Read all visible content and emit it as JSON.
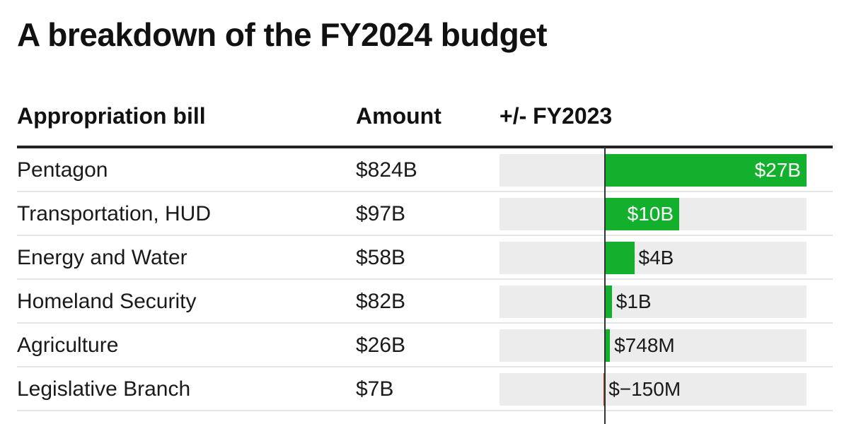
{
  "chart_data": {
    "type": "table",
    "title": "A breakdown of the FY2024 budget",
    "columns": [
      "Appropriation bill",
      "Amount",
      "+/- FY2023"
    ],
    "rows": [
      {
        "bill": "Pentagon",
        "amount": "$824B",
        "change": 27000,
        "change_label": "$27B"
      },
      {
        "bill": "Transportation, HUD",
        "amount": "$97B",
        "change": 10000,
        "change_label": "$10B"
      },
      {
        "bill": "Energy and Water",
        "amount": "$58B",
        "change": 4000,
        "change_label": "$4B"
      },
      {
        "bill": "Homeland Security",
        "amount": "$82B",
        "change": 1000,
        "change_label": "$1B"
      },
      {
        "bill": "Agriculture",
        "amount": "$26B",
        "change": 748,
        "change_label": "$748M"
      },
      {
        "bill": "Legislative Branch",
        "amount": "$7B",
        "change": -150,
        "change_label": "$−150M"
      }
    ],
    "change_unit": "millions of dollars",
    "change_axis_range": [
      -14000,
      27000
    ],
    "colors": {
      "positive": "#12b02c",
      "negative": "#c0392b",
      "track": "#ececec"
    }
  }
}
